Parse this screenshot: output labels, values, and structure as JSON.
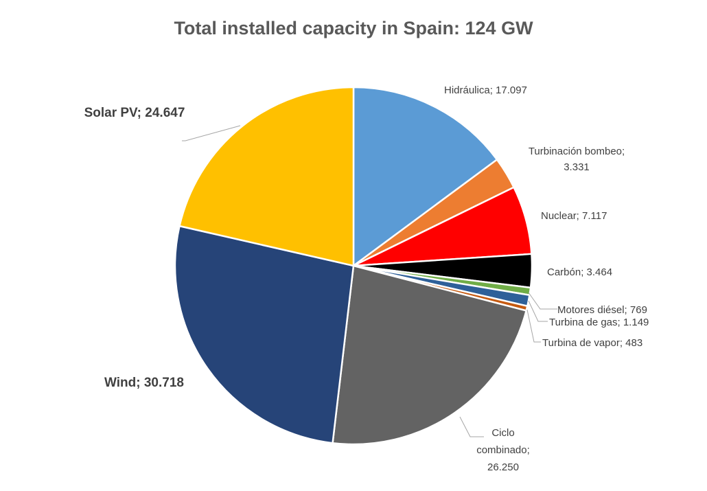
{
  "chart_data": {
    "type": "pie",
    "title": "Total installed capacity in Spain: 124 GW",
    "start_angle_deg": 0,
    "direction": "clockwise",
    "slices": [
      {
        "name": "Hidráulica",
        "value": 17097,
        "label": "Hidráulica; 17.097",
        "color": "#5b9bd5"
      },
      {
        "name": "Turbinación bombeo",
        "value": 3331,
        "label": "Turbinación bombeo; 3.331",
        "color": "#ed7d31"
      },
      {
        "name": "Nuclear",
        "value": 7117,
        "label": "Nuclear; 7.117",
        "color": "#ff0000"
      },
      {
        "name": "Carbón",
        "value": 3464,
        "label": "Carbón; 3.464",
        "color": "#000000"
      },
      {
        "name": "Motores diésel",
        "value": 769,
        "label": "Motores diésel; 769",
        "color": "#70ad47"
      },
      {
        "name": "Turbina de gas",
        "value": 1149,
        "label": "Turbina de gas; 1.149",
        "color": "#2e6099"
      },
      {
        "name": "Turbina de vapor",
        "value": 483,
        "label": "Turbina de vapor; 483",
        "color": "#c55a11"
      },
      {
        "name": "Ciclo combinado",
        "value": 26250,
        "label": "Ciclo combinado; 26.250",
        "color": "#636363"
      },
      {
        "name": "Wind",
        "value": 30718,
        "label": "Wind; 30.718",
        "color": "#264478"
      },
      {
        "name": "Solar PV",
        "value": 24647,
        "label": "Solar PV; 24.647",
        "color": "#ffc000"
      }
    ]
  }
}
